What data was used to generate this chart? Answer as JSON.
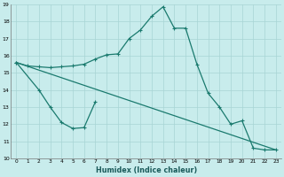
{
  "xlabel": "Humidex (Indice chaleur)",
  "line_main_x": [
    0,
    1,
    2,
    3,
    4,
    5,
    6,
    7,
    8,
    9,
    10,
    11,
    12,
    13,
    14,
    15,
    16,
    17,
    18,
    19,
    20,
    21,
    22,
    23
  ],
  "line_main_y": [
    15.6,
    15.4,
    15.35,
    15.3,
    15.35,
    15.4,
    15.5,
    15.8,
    16.05,
    16.1,
    17.0,
    17.5,
    18.3,
    18.85,
    17.6,
    17.6,
    15.5,
    13.8,
    13.0,
    12.0,
    12.2,
    10.6,
    10.5,
    10.5
  ],
  "line_zigzag_x": [
    0,
    2,
    3,
    4,
    5,
    6,
    7
  ],
  "line_zigzag_y": [
    15.6,
    14.0,
    13.0,
    12.1,
    11.75,
    11.8,
    13.3
  ],
  "line_trend_x": [
    0,
    23
  ],
  "line_trend_y": [
    15.6,
    10.5
  ],
  "bg_color": "#c8ecec",
  "grid_color": "#a8d4d4",
  "line_color": "#1a7a6e",
  "ylim": [
    10,
    19
  ],
  "xlim": [
    -0.5,
    23.5
  ],
  "yticks": [
    10,
    11,
    12,
    13,
    14,
    15,
    16,
    17,
    18,
    19
  ],
  "xticks": [
    0,
    1,
    2,
    3,
    4,
    5,
    6,
    7,
    8,
    9,
    10,
    11,
    12,
    13,
    14,
    15,
    16,
    17,
    18,
    19,
    20,
    21,
    22,
    23
  ]
}
